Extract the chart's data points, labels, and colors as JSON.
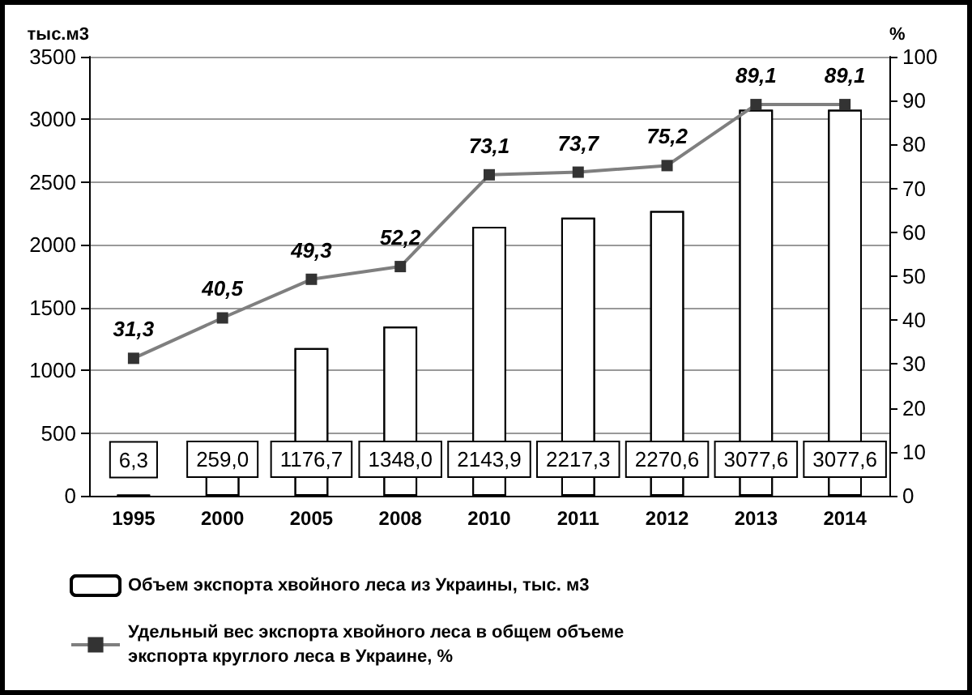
{
  "chart_data": {
    "type": "bar",
    "categories": [
      "1995",
      "2000",
      "2005",
      "2008",
      "2010",
      "2011",
      "2012",
      "2013",
      "2014"
    ],
    "ylabel": "тыс.м3",
    "y2label": "%",
    "series": [
      {
        "name": "Объем экспорта хвойного леса из Украины, тыс. м3",
        "color": "#ffffff",
        "values": [
          6.3,
          259.0,
          1176.7,
          1348.0,
          2143.9,
          2217.3,
          2270.6,
          3077.6,
          3077.6
        ],
        "value_labels": [
          "6,3",
          "259,0",
          "1176,7",
          "1348,0",
          "2143,9",
          "2217,3",
          "2270,6",
          "3077,6",
          "3077,6"
        ]
      },
      {
        "name": "Удельный вес экспорта хвойного леса в общем объеме экспорта круглого леса в Украине, %",
        "type": "line",
        "axis": "y2",
        "color": "#7f7f7f",
        "marker": "square",
        "values": [
          31.3,
          40.5,
          49.3,
          52.2,
          73.1,
          73.7,
          75.2,
          89.1,
          89.1
        ],
        "value_labels": [
          "31,3",
          "40,5",
          "49,3",
          "52,2",
          "73,1",
          "73,7",
          "75,2",
          "89,1",
          "89,1"
        ]
      }
    ],
    "ylim": [
      0,
      3500
    ],
    "yticks": [
      0,
      500,
      1000,
      1500,
      2000,
      2500,
      3000,
      3500
    ],
    "y2lim": [
      0,
      100
    ],
    "y2ticks": [
      0,
      10,
      20,
      30,
      40,
      50,
      60,
      70,
      80,
      90,
      100
    ],
    "grid": "y",
    "legend": "bottom"
  }
}
